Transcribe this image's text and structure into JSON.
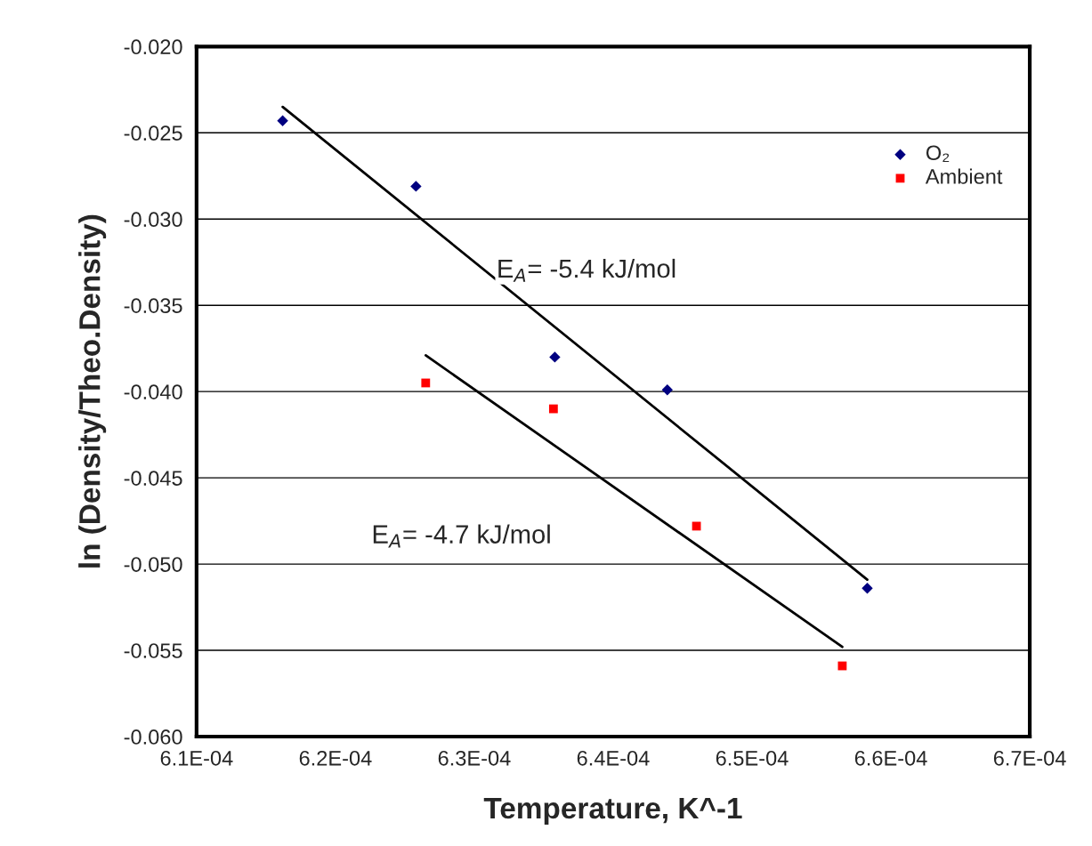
{
  "chart_data": {
    "type": "scatter",
    "xlabel": "Temperature, K^-1",
    "ylabel": "ln (Density/Theo.Density)",
    "xlim": [
      0.00061,
      0.00067
    ],
    "xticks": [
      {
        "value": 0.00061,
        "label": "6.1E-04"
      },
      {
        "value": 0.00062,
        "label": "6.2E-04"
      },
      {
        "value": 0.00063,
        "label": "6.3E-04"
      },
      {
        "value": 0.00064,
        "label": "6.4E-04"
      },
      {
        "value": 0.00065,
        "label": "6.5E-04"
      },
      {
        "value": 0.00066,
        "label": "6.6E-04"
      },
      {
        "value": 0.00067,
        "label": "6.7E-04"
      }
    ],
    "ylim": [
      -0.06,
      -0.02
    ],
    "yticks": [
      {
        "value": -0.06,
        "label": "-0.060"
      },
      {
        "value": -0.055,
        "label": "-0.055"
      },
      {
        "value": -0.05,
        "label": "-0.050"
      },
      {
        "value": -0.045,
        "label": "-0.045"
      },
      {
        "value": -0.04,
        "label": "-0.040"
      },
      {
        "value": -0.035,
        "label": "-0.035"
      },
      {
        "value": -0.03,
        "label": "-0.030"
      },
      {
        "value": -0.025,
        "label": "-0.025"
      },
      {
        "value": -0.02,
        "label": "-0.020"
      }
    ],
    "grid": "y",
    "legend": "top right",
    "series": [
      {
        "name": "O₂",
        "color": "#000080",
        "marker": "diamond",
        "x": [
          0.0006162,
          0.0006258,
          0.0006358,
          0.0006439,
          0.0006583
        ],
        "values": [
          -0.0243,
          -0.0281,
          -0.038,
          -0.0399,
          -0.0514
        ]
      },
      {
        "name": "Ambient",
        "color": "#ff0000",
        "marker": "square",
        "x": [
          0.0006265,
          0.0006357,
          0.000646,
          0.0006565
        ],
        "values": [
          -0.0395,
          -0.041,
          -0.0478,
          -0.0559
        ]
      },
      {
        "type": "line",
        "color": "#000000",
        "x": [
          0.0006162,
          0.0006583
        ],
        "values": [
          -0.0235,
          -0.0509
        ]
      },
      {
        "type": "line",
        "color": "#000000",
        "x": [
          0.0006265,
          0.0006565
        ],
        "values": [
          -0.0379,
          -0.0548
        ]
      }
    ],
    "annotations": [
      "E$_{A}$= -5.4 kJ/mol",
      "E$_{A}$= -4.7 kJ/mol"
    ]
  }
}
